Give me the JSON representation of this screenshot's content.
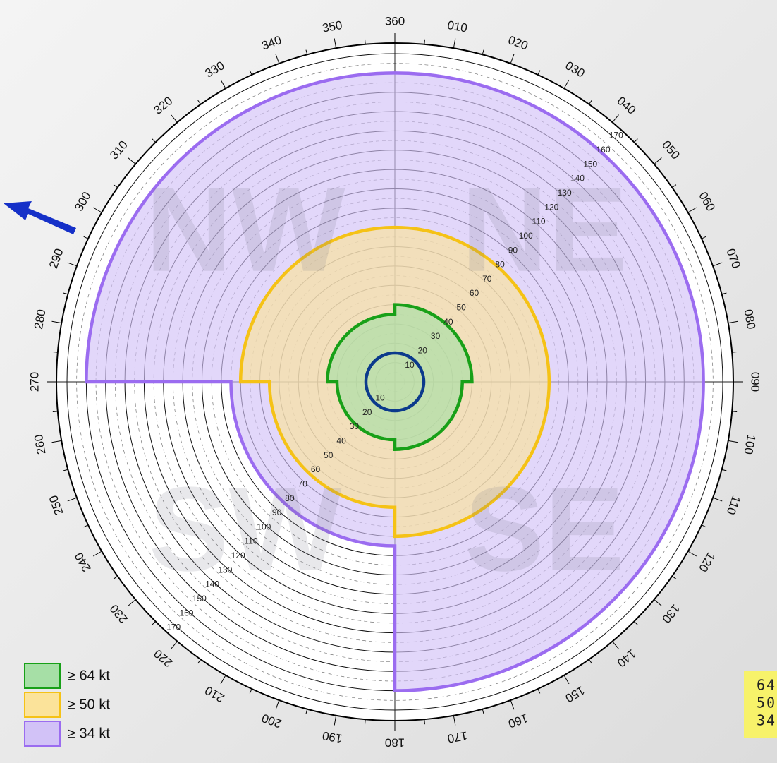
{
  "chart_data": {
    "type": "wind-radii",
    "quadrants": [
      "NE",
      "SE",
      "SW",
      "NW"
    ],
    "series": [
      {
        "name": "≥ 34 kt",
        "color": "#9b6cf0",
        "fill": "#d2c2f7",
        "values": [
          160,
          160,
          85,
          160
        ]
      },
      {
        "name": "≥ 50 kt",
        "color": "#f5c216",
        "fill": "#fbe39a",
        "values": [
          80,
          80,
          65,
          80
        ]
      },
      {
        "name": "≥ 64 kt",
        "color": "#18a018",
        "fill": "#a6dfa6",
        "values": [
          40,
          35,
          30,
          35
        ]
      }
    ],
    "rmw": 15,
    "rmw_color": "#0b3a8c",
    "rlim": [
      0,
      170
    ],
    "rticks": [
      10,
      20,
      30,
      40,
      50,
      60,
      70,
      80,
      90,
      100,
      110,
      120,
      130,
      140,
      150,
      160,
      170
    ],
    "compass_ticks": [
      {
        "value": 10,
        "label": "010"
      },
      {
        "value": 20,
        "label": "020"
      },
      {
        "value": 30,
        "label": "030"
      },
      {
        "value": 40,
        "label": "040"
      },
      {
        "value": 50,
        "label": "050"
      },
      {
        "value": 60,
        "label": "060"
      },
      {
        "value": 70,
        "label": "070"
      },
      {
        "value": 80,
        "label": "080"
      },
      {
        "value": 90,
        "label": "090"
      },
      100,
      110,
      120,
      130,
      140,
      150,
      160,
      170,
      180,
      190,
      200,
      210,
      220,
      230,
      240,
      250,
      260,
      270,
      280,
      290,
      300,
      310,
      320,
      330,
      340,
      350,
      360
    ],
    "side_panel": [
      "64",
      "50",
      "34"
    ]
  }
}
